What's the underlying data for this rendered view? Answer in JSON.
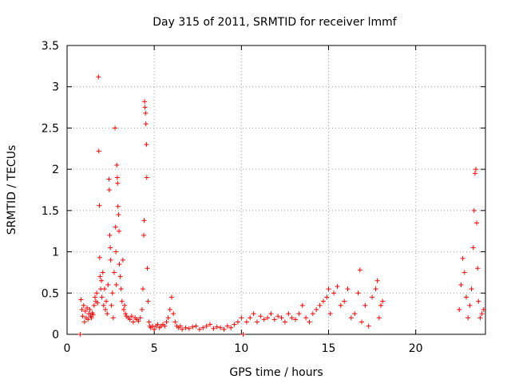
{
  "chart_data": {
    "type": "scatter",
    "title": "Day 315 of 2011, SRMTID for receiver lmmf",
    "xlabel": "GPS time / hours",
    "ylabel": "SRMTID / TECUs",
    "xlim": [
      0,
      24
    ],
    "ylim": [
      0,
      3.5
    ],
    "xticks": [
      0,
      5,
      10,
      15,
      20
    ],
    "yticks": [
      0,
      0.5,
      1,
      1.5,
      2,
      2.5,
      3,
      3.5
    ],
    "xtick_labels": [
      "0",
      "5",
      "10",
      "15",
      "20"
    ],
    "ytick_labels": [
      "0",
      "0.5",
      "1",
      "1.5",
      "2",
      "2.5",
      "3",
      "3.5"
    ],
    "grid": true,
    "marker": "+",
    "color": "#ff0000",
    "series": [
      {
        "points": [
          [
            0.75,
            0.0
          ],
          [
            0.8,
            0.42
          ],
          [
            0.85,
            0.3
          ],
          [
            0.9,
            0.22
          ],
          [
            0.95,
            0.35
          ],
          [
            1.0,
            0.15
          ],
          [
            1.05,
            0.28
          ],
          [
            1.1,
            0.2
          ],
          [
            1.15,
            0.32
          ],
          [
            1.2,
            0.18
          ],
          [
            1.25,
            0.25
          ],
          [
            1.3,
            0.3
          ],
          [
            1.35,
            0.22
          ],
          [
            1.4,
            0.2
          ],
          [
            1.45,
            0.26
          ],
          [
            1.5,
            0.24
          ],
          [
            1.55,
            0.35
          ],
          [
            1.6,
            0.45
          ],
          [
            1.65,
            0.4
          ],
          [
            1.7,
            0.5
          ],
          [
            1.75,
            0.38
          ],
          [
            1.8,
            3.12
          ],
          [
            1.82,
            2.22
          ],
          [
            1.85,
            1.56
          ],
          [
            1.87,
            0.93
          ],
          [
            1.9,
            0.7
          ],
          [
            1.93,
            0.55
          ],
          [
            1.97,
            0.65
          ],
          [
            2.0,
            0.45
          ],
          [
            2.05,
            0.75
          ],
          [
            2.1,
            0.35
          ],
          [
            2.15,
            0.55
          ],
          [
            2.2,
            0.3
          ],
          [
            2.25,
            0.4
          ],
          [
            2.3,
            0.25
          ],
          [
            2.35,
            0.6
          ],
          [
            2.4,
            1.88
          ],
          [
            2.42,
            1.75
          ],
          [
            2.45,
            1.2
          ],
          [
            2.48,
            1.05
          ],
          [
            2.5,
            0.9
          ],
          [
            2.55,
            0.35
          ],
          [
            2.6,
            0.5
          ],
          [
            2.65,
            0.2
          ],
          [
            2.7,
            0.75
          ],
          [
            2.75,
            2.5
          ],
          [
            2.78,
            1.3
          ],
          [
            2.8,
            1.0
          ],
          [
            2.83,
            0.6
          ],
          [
            2.85,
            2.05
          ],
          [
            2.88,
            1.9
          ],
          [
            2.9,
            1.83
          ],
          [
            2.92,
            1.55
          ],
          [
            2.95,
            1.45
          ],
          [
            2.98,
            1.25
          ],
          [
            3.0,
            0.85
          ],
          [
            3.05,
            0.7
          ],
          [
            3.1,
            0.55
          ],
          [
            3.15,
            0.4
          ],
          [
            3.2,
            0.9
          ],
          [
            3.25,
            0.3
          ],
          [
            3.3,
            0.35
          ],
          [
            3.35,
            0.25
          ],
          [
            3.4,
            0.22
          ],
          [
            3.5,
            0.2
          ],
          [
            3.6,
            0.18
          ],
          [
            3.7,
            0.22
          ],
          [
            3.8,
            0.15
          ],
          [
            3.9,
            0.2
          ],
          [
            4.0,
            0.18
          ],
          [
            4.1,
            0.16
          ],
          [
            4.2,
            0.2
          ],
          [
            4.3,
            0.3
          ],
          [
            4.35,
            0.55
          ],
          [
            4.4,
            1.2
          ],
          [
            4.42,
            1.38
          ],
          [
            4.45,
            2.82
          ],
          [
            4.47,
            2.75
          ],
          [
            4.5,
            2.68
          ],
          [
            4.52,
            2.55
          ],
          [
            4.55,
            2.3
          ],
          [
            4.57,
            1.9
          ],
          [
            4.6,
            0.8
          ],
          [
            4.65,
            0.4
          ],
          [
            4.7,
            0.15
          ],
          [
            4.75,
            0.1
          ],
          [
            4.8,
            0.08
          ],
          [
            4.9,
            0.1
          ],
          [
            5.0,
            0.06
          ],
          [
            5.1,
            0.1
          ],
          [
            5.2,
            0.12
          ],
          [
            5.3,
            0.08
          ],
          [
            5.4,
            0.1
          ],
          [
            5.5,
            0.12
          ],
          [
            5.6,
            0.1
          ],
          [
            5.7,
            0.15
          ],
          [
            5.8,
            0.2
          ],
          [
            5.9,
            0.3
          ],
          [
            6.0,
            0.45
          ],
          [
            6.1,
            0.25
          ],
          [
            6.2,
            0.15
          ],
          [
            6.3,
            0.1
          ],
          [
            6.4,
            0.08
          ],
          [
            6.5,
            0.1
          ],
          [
            6.6,
            0.06
          ],
          [
            6.8,
            0.08
          ],
          [
            7.0,
            0.07
          ],
          [
            7.2,
            0.09
          ],
          [
            7.4,
            0.1
          ],
          [
            7.6,
            0.06
          ],
          [
            7.8,
            0.08
          ],
          [
            8.0,
            0.1
          ],
          [
            8.2,
            0.12
          ],
          [
            8.4,
            0.07
          ],
          [
            8.6,
            0.09
          ],
          [
            8.8,
            0.08
          ],
          [
            9.0,
            0.06
          ],
          [
            9.2,
            0.1
          ],
          [
            9.4,
            0.08
          ],
          [
            9.6,
            0.12
          ],
          [
            9.8,
            0.15
          ],
          [
            10.0,
            0.2
          ],
          [
            10.1,
            0.0
          ],
          [
            10.3,
            0.15
          ],
          [
            10.5,
            0.2
          ],
          [
            10.7,
            0.25
          ],
          [
            10.9,
            0.15
          ],
          [
            11.1,
            0.22
          ],
          [
            11.3,
            0.18
          ],
          [
            11.5,
            0.2
          ],
          [
            11.7,
            0.25
          ],
          [
            11.9,
            0.18
          ],
          [
            12.1,
            0.22
          ],
          [
            12.3,
            0.2
          ],
          [
            12.5,
            0.15
          ],
          [
            12.7,
            0.25
          ],
          [
            12.9,
            0.2
          ],
          [
            13.1,
            0.18
          ],
          [
            13.3,
            0.25
          ],
          [
            13.5,
            0.35
          ],
          [
            13.7,
            0.2
          ],
          [
            13.9,
            0.15
          ],
          [
            14.1,
            0.25
          ],
          [
            14.3,
            0.3
          ],
          [
            14.5,
            0.35
          ],
          [
            14.7,
            0.4
          ],
          [
            14.9,
            0.45
          ],
          [
            15.0,
            0.55
          ],
          [
            15.1,
            0.25
          ],
          [
            15.3,
            0.5
          ],
          [
            15.5,
            0.58
          ],
          [
            15.7,
            0.35
          ],
          [
            15.9,
            0.4
          ],
          [
            16.1,
            0.55
          ],
          [
            16.3,
            0.2
          ],
          [
            16.5,
            0.25
          ],
          [
            16.7,
            0.5
          ],
          [
            16.8,
            0.78
          ],
          [
            16.9,
            0.15
          ],
          [
            17.1,
            0.35
          ],
          [
            17.3,
            0.1
          ],
          [
            17.5,
            0.45
          ],
          [
            17.7,
            0.55
          ],
          [
            17.8,
            0.65
          ],
          [
            17.9,
            0.2
          ],
          [
            18.0,
            0.35
          ],
          [
            18.1,
            0.4
          ],
          [
            22.5,
            0.3
          ],
          [
            22.6,
            0.6
          ],
          [
            22.7,
            0.92
          ],
          [
            22.8,
            0.75
          ],
          [
            22.9,
            0.45
          ],
          [
            23.0,
            0.2
          ],
          [
            23.1,
            0.35
          ],
          [
            23.2,
            0.55
          ],
          [
            23.3,
            1.05
          ],
          [
            23.35,
            1.5
          ],
          [
            23.4,
            1.95
          ],
          [
            23.45,
            2.0
          ],
          [
            23.5,
            1.35
          ],
          [
            23.55,
            0.8
          ],
          [
            23.6,
            0.4
          ],
          [
            23.7,
            0.2
          ],
          [
            23.8,
            0.25
          ],
          [
            23.9,
            0.3
          ]
        ]
      }
    ]
  }
}
